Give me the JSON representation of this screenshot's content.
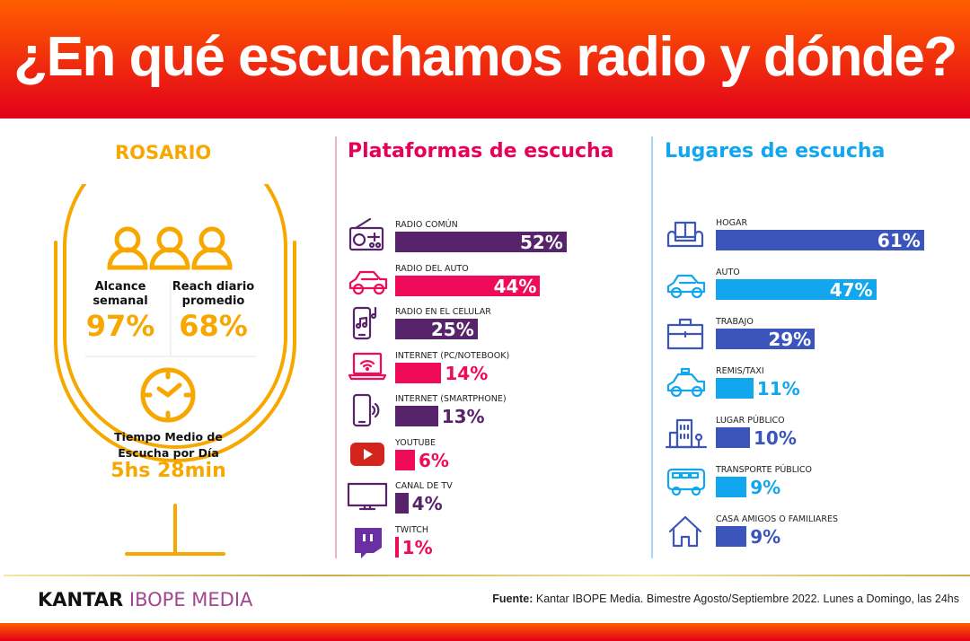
{
  "header": {
    "title": "¿En qué escuchamos radio y dónde?"
  },
  "rosario": {
    "title": "ROSARIO",
    "alcance_label_1": "Alcance",
    "alcance_label_2": "semanal",
    "alcance_value": "97%",
    "reach_label_1": "Reach diario",
    "reach_label_2": "promedio",
    "reach_value": "68%",
    "tiempo_label_1": "Tiempo Medio de",
    "tiempo_label_2": "Escucha por Día",
    "tiempo_value": "5hs 28min",
    "accent": "#f6a800"
  },
  "chart_data": [
    {
      "type": "bar",
      "title": "Plataformas de escucha",
      "orientation": "horizontal",
      "categories": [
        "RADIO COMÚN",
        "RADIO DEL AUTO",
        "RADIO EN EL CELULAR",
        "INTERNET (PC/NOTEBOOK)",
        "INTERNET (SMARTPHONE)",
        "YOUTUBE",
        "CANAL DE TV",
        "TWITCH"
      ],
      "values": [
        52,
        44,
        25,
        14,
        13,
        6,
        4,
        1
      ],
      "labels": [
        "52%",
        "44%",
        "25%",
        "14%",
        "13%",
        "6%",
        "4%",
        "1%"
      ],
      "colors": [
        "#57246b",
        "#f00a5a",
        "#57246b",
        "#f00a5a",
        "#57246b",
        "#f00a5a",
        "#57246b",
        "#f00a5a"
      ],
      "icons": [
        "radio-icon",
        "car-icon",
        "phone-music-icon",
        "laptop-wifi-icon",
        "smartphone-signal-icon",
        "youtube-icon",
        "tv-icon",
        "twitch-icon"
      ],
      "xlim": [
        0,
        100
      ],
      "title_color": "#e6005a"
    },
    {
      "type": "bar",
      "title": "Lugares de escucha",
      "orientation": "horizontal",
      "categories": [
        "HOGAR",
        "AUTO",
        "TRABAJO",
        "REMIS/TAXI",
        "LUGAR PÚBLICO",
        "TRANSPORTE PÚBLICO",
        "CASA AMIGOS O FAMILIARES"
      ],
      "values": [
        61,
        47,
        29,
        11,
        10,
        9,
        9
      ],
      "labels": [
        "61%",
        "47%",
        "29%",
        "11%",
        "10%",
        "9%",
        "9%"
      ],
      "colors": [
        "#3b55bd",
        "#11a6ee",
        "#3b55bd",
        "#11a6ee",
        "#3b55bd",
        "#11a6ee",
        "#3b55bd"
      ],
      "icons": [
        "sofa-icon",
        "car-icon",
        "briefcase-icon",
        "taxi-icon",
        "building-icon",
        "bus-icon",
        "house-icon"
      ],
      "xlim": [
        0,
        100
      ],
      "title_color": "#11a6ee"
    }
  ],
  "footer": {
    "logo_1": "KANTAR",
    "logo_2": "IBOPE MEDIA",
    "source_label": "Fuente:",
    "source_text": " Kantar IBOPE Media. Bimestre Agosto/Septiembre 2022. Lunes a Domingo, las 24hs"
  }
}
